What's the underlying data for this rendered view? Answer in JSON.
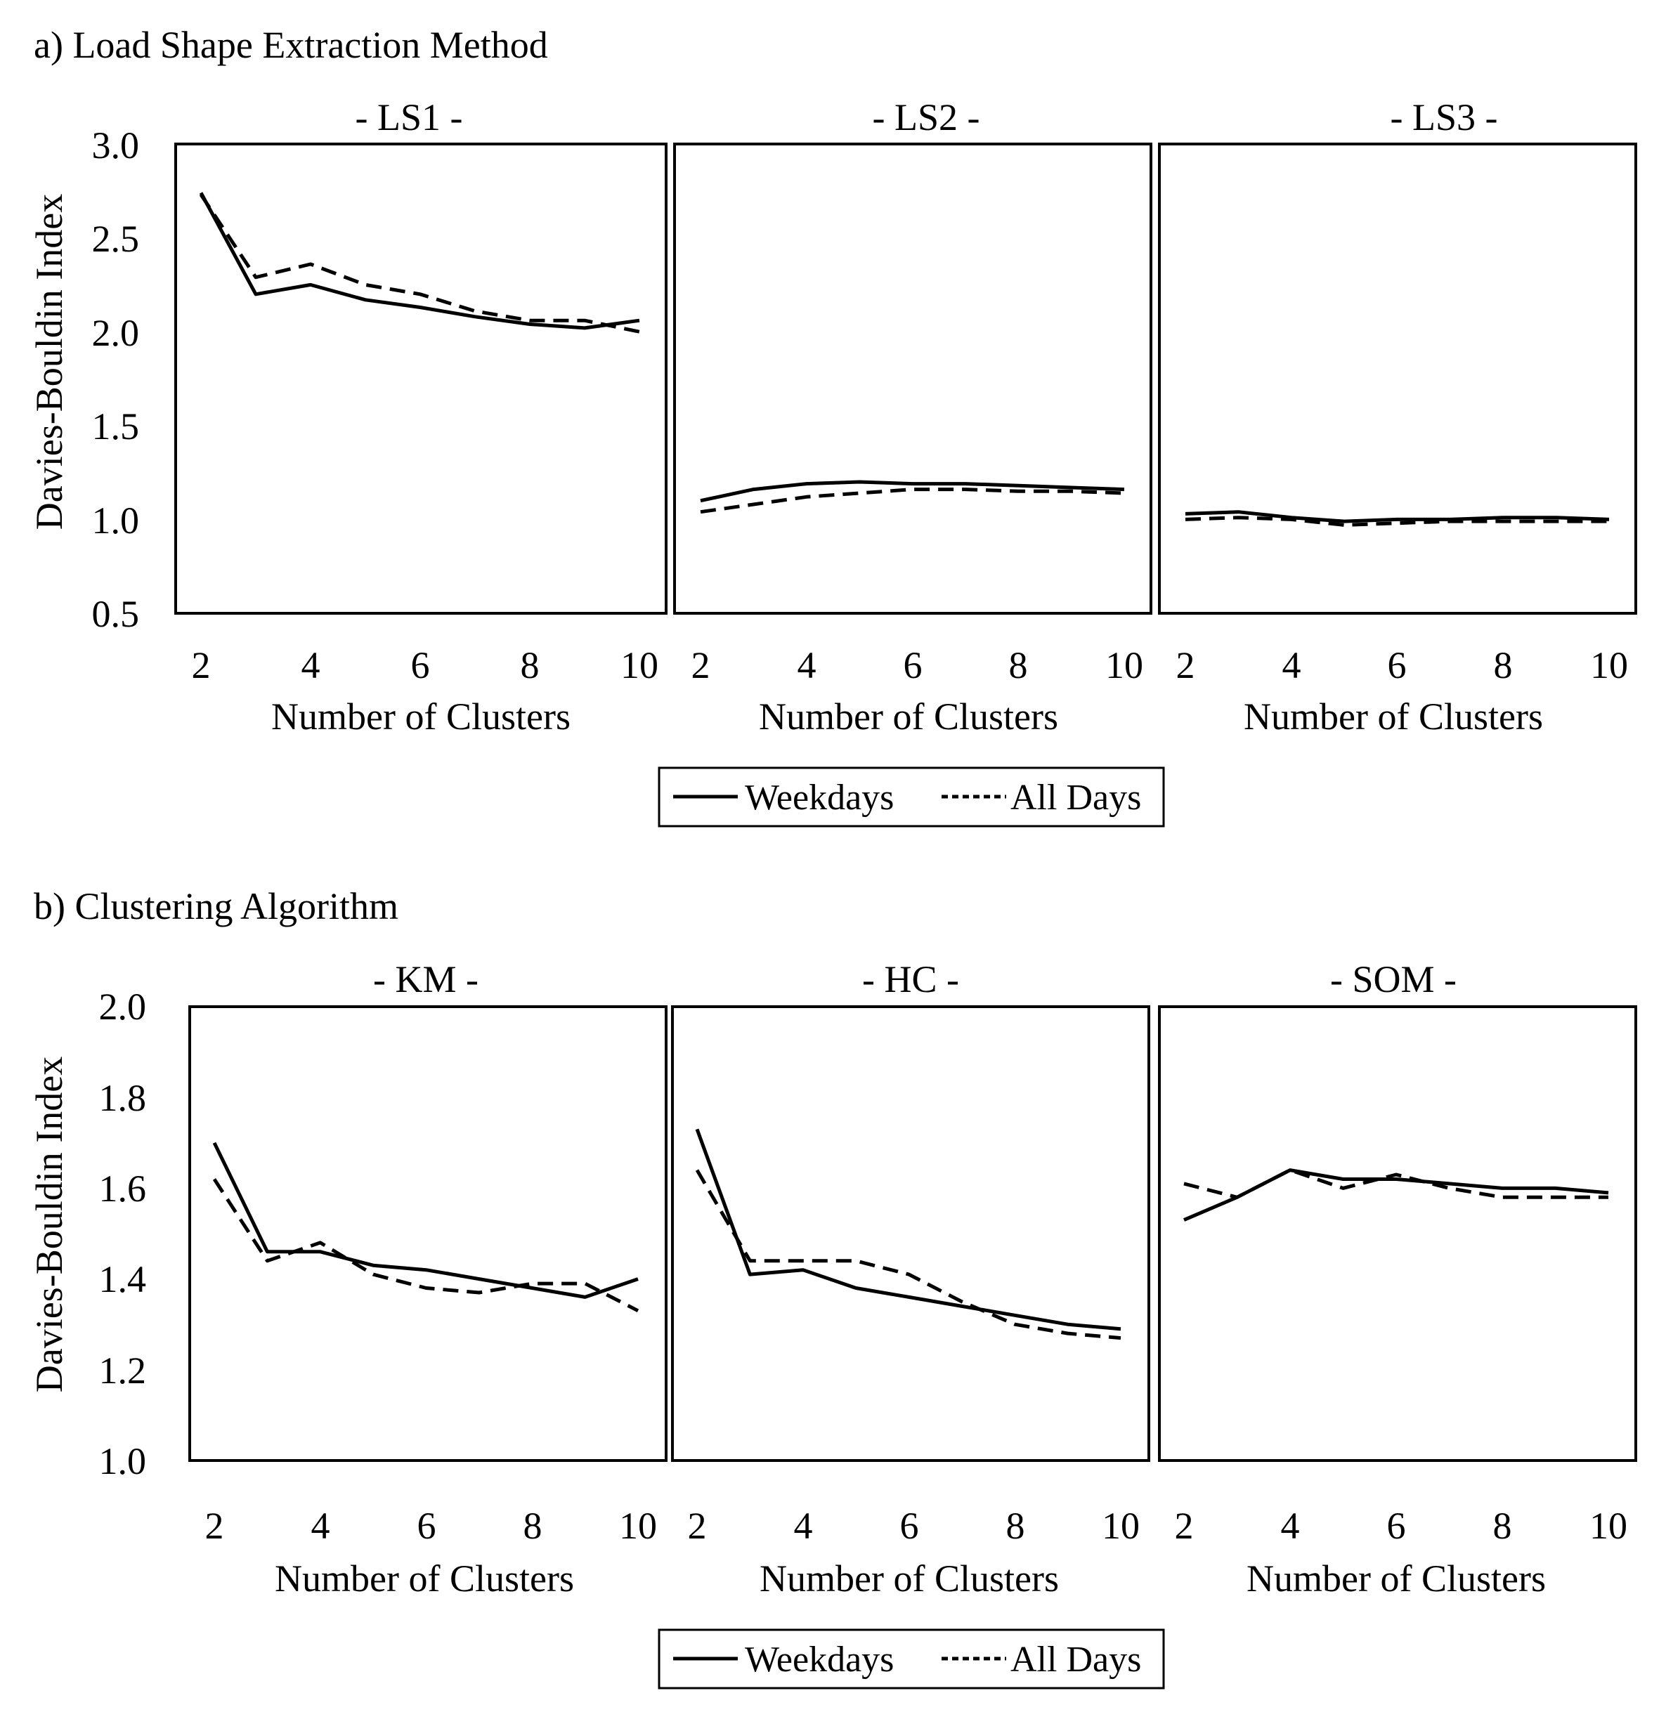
{
  "chart_data": [
    {
      "section_title": "a) Load Shape Extraction Method",
      "ylabel": "Davies-Bouldin Index",
      "ylim": [
        0.5,
        3.0
      ],
      "yticks": [
        "0.5",
        "1.0",
        "1.5",
        "2.0",
        "2.5",
        "3.0"
      ],
      "legend": {
        "weekdays": "Weekdays",
        "all_days": "All Days"
      },
      "panels": [
        {
          "type": "line",
          "title": "- LS1 -",
          "xlabel": "Number of Clusters",
          "xlim": [
            2,
            10
          ],
          "xticks": [
            "2",
            "4",
            "6",
            "8",
            "10"
          ],
          "x": [
            2,
            3,
            4,
            5,
            6,
            7,
            8,
            9,
            10
          ],
          "series": [
            {
              "name": "Weekdays",
              "style": "solid",
              "values": [
                2.74,
                2.2,
                2.25,
                2.17,
                2.13,
                2.08,
                2.04,
                2.02,
                2.06
              ]
            },
            {
              "name": "All Days",
              "style": "dashed",
              "values": [
                2.73,
                2.29,
                2.36,
                2.25,
                2.2,
                2.11,
                2.06,
                2.06,
                2.0
              ]
            }
          ]
        },
        {
          "type": "line",
          "title": "- LS2 -",
          "xlabel": "Number of Clusters",
          "xlim": [
            2,
            10
          ],
          "xticks": [
            "2",
            "4",
            "6",
            "8",
            "10"
          ],
          "x": [
            2,
            3,
            4,
            5,
            6,
            7,
            8,
            9,
            10
          ],
          "series": [
            {
              "name": "Weekdays",
              "style": "solid",
              "values": [
                1.1,
                1.16,
                1.19,
                1.2,
                1.19,
                1.19,
                1.18,
                1.17,
                1.16
              ]
            },
            {
              "name": "All Days",
              "style": "dashed",
              "values": [
                1.04,
                1.08,
                1.12,
                1.14,
                1.16,
                1.16,
                1.15,
                1.15,
                1.14
              ]
            }
          ]
        },
        {
          "type": "line",
          "title": "- LS3 -",
          "xlabel": "Number of Clusters",
          "xlim": [
            2,
            10
          ],
          "xticks": [
            "2",
            "4",
            "6",
            "8",
            "10"
          ],
          "x": [
            2,
            3,
            4,
            5,
            6,
            7,
            8,
            9,
            10
          ],
          "series": [
            {
              "name": "Weekdays",
              "style": "solid",
              "values": [
                1.03,
                1.04,
                1.01,
                0.99,
                1.0,
                1.0,
                1.01,
                1.01,
                1.0
              ]
            },
            {
              "name": "All Days",
              "style": "dashed",
              "values": [
                1.0,
                1.01,
                1.0,
                0.97,
                0.98,
                0.99,
                0.99,
                0.99,
                0.99
              ]
            }
          ]
        }
      ]
    },
    {
      "section_title": "b) Clustering Algorithm",
      "ylabel": "Davies-Bouldin Index",
      "ylim": [
        1.0,
        2.0
      ],
      "yticks": [
        "1.0",
        "1.2",
        "1.4",
        "1.6",
        "1.8",
        "2.0"
      ],
      "legend": {
        "weekdays": "Weekdays",
        "all_days": "All Days"
      },
      "panels": [
        {
          "type": "line",
          "title": "- KM -",
          "xlabel": "Number of Clusters",
          "xlim": [
            2,
            10
          ],
          "xticks": [
            "2",
            "4",
            "6",
            "8",
            "10"
          ],
          "x": [
            2,
            3,
            4,
            5,
            6,
            7,
            8,
            9,
            10
          ],
          "series": [
            {
              "name": "Weekdays",
              "style": "solid",
              "values": [
                1.7,
                1.46,
                1.46,
                1.43,
                1.42,
                1.4,
                1.38,
                1.36,
                1.4
              ]
            },
            {
              "name": "All Days",
              "style": "dashed",
              "values": [
                1.62,
                1.44,
                1.48,
                1.41,
                1.38,
                1.37,
                1.39,
                1.39,
                1.33
              ]
            }
          ]
        },
        {
          "type": "line",
          "title": "- HC -",
          "xlabel": "Number of Clusters",
          "xlim": [
            2,
            10
          ],
          "xticks": [
            "2",
            "4",
            "6",
            "8",
            "10"
          ],
          "x": [
            2,
            3,
            4,
            5,
            6,
            7,
            8,
            9,
            10
          ],
          "series": [
            {
              "name": "Weekdays",
              "style": "solid",
              "values": [
                1.73,
                1.41,
                1.42,
                1.38,
                1.36,
                1.34,
                1.32,
                1.3,
                1.29
              ]
            },
            {
              "name": "All Days",
              "style": "dashed",
              "values": [
                1.64,
                1.44,
                1.44,
                1.44,
                1.41,
                1.35,
                1.3,
                1.28,
                1.27
              ]
            }
          ]
        },
        {
          "type": "line",
          "title": "- SOM -",
          "xlabel": "Number of Clusters",
          "xlim": [
            2,
            10
          ],
          "xticks": [
            "2",
            "4",
            "6",
            "8",
            "10"
          ],
          "x": [
            2,
            3,
            4,
            5,
            6,
            7,
            8,
            9,
            10
          ],
          "series": [
            {
              "name": "Weekdays",
              "style": "solid",
              "values": [
                1.53,
                1.58,
                1.64,
                1.62,
                1.62,
                1.61,
                1.6,
                1.6,
                1.59
              ]
            },
            {
              "name": "All Days",
              "style": "dashed",
              "values": [
                1.61,
                1.58,
                1.64,
                1.6,
                1.63,
                1.6,
                1.58,
                1.58,
                1.58
              ]
            }
          ]
        }
      ]
    }
  ]
}
